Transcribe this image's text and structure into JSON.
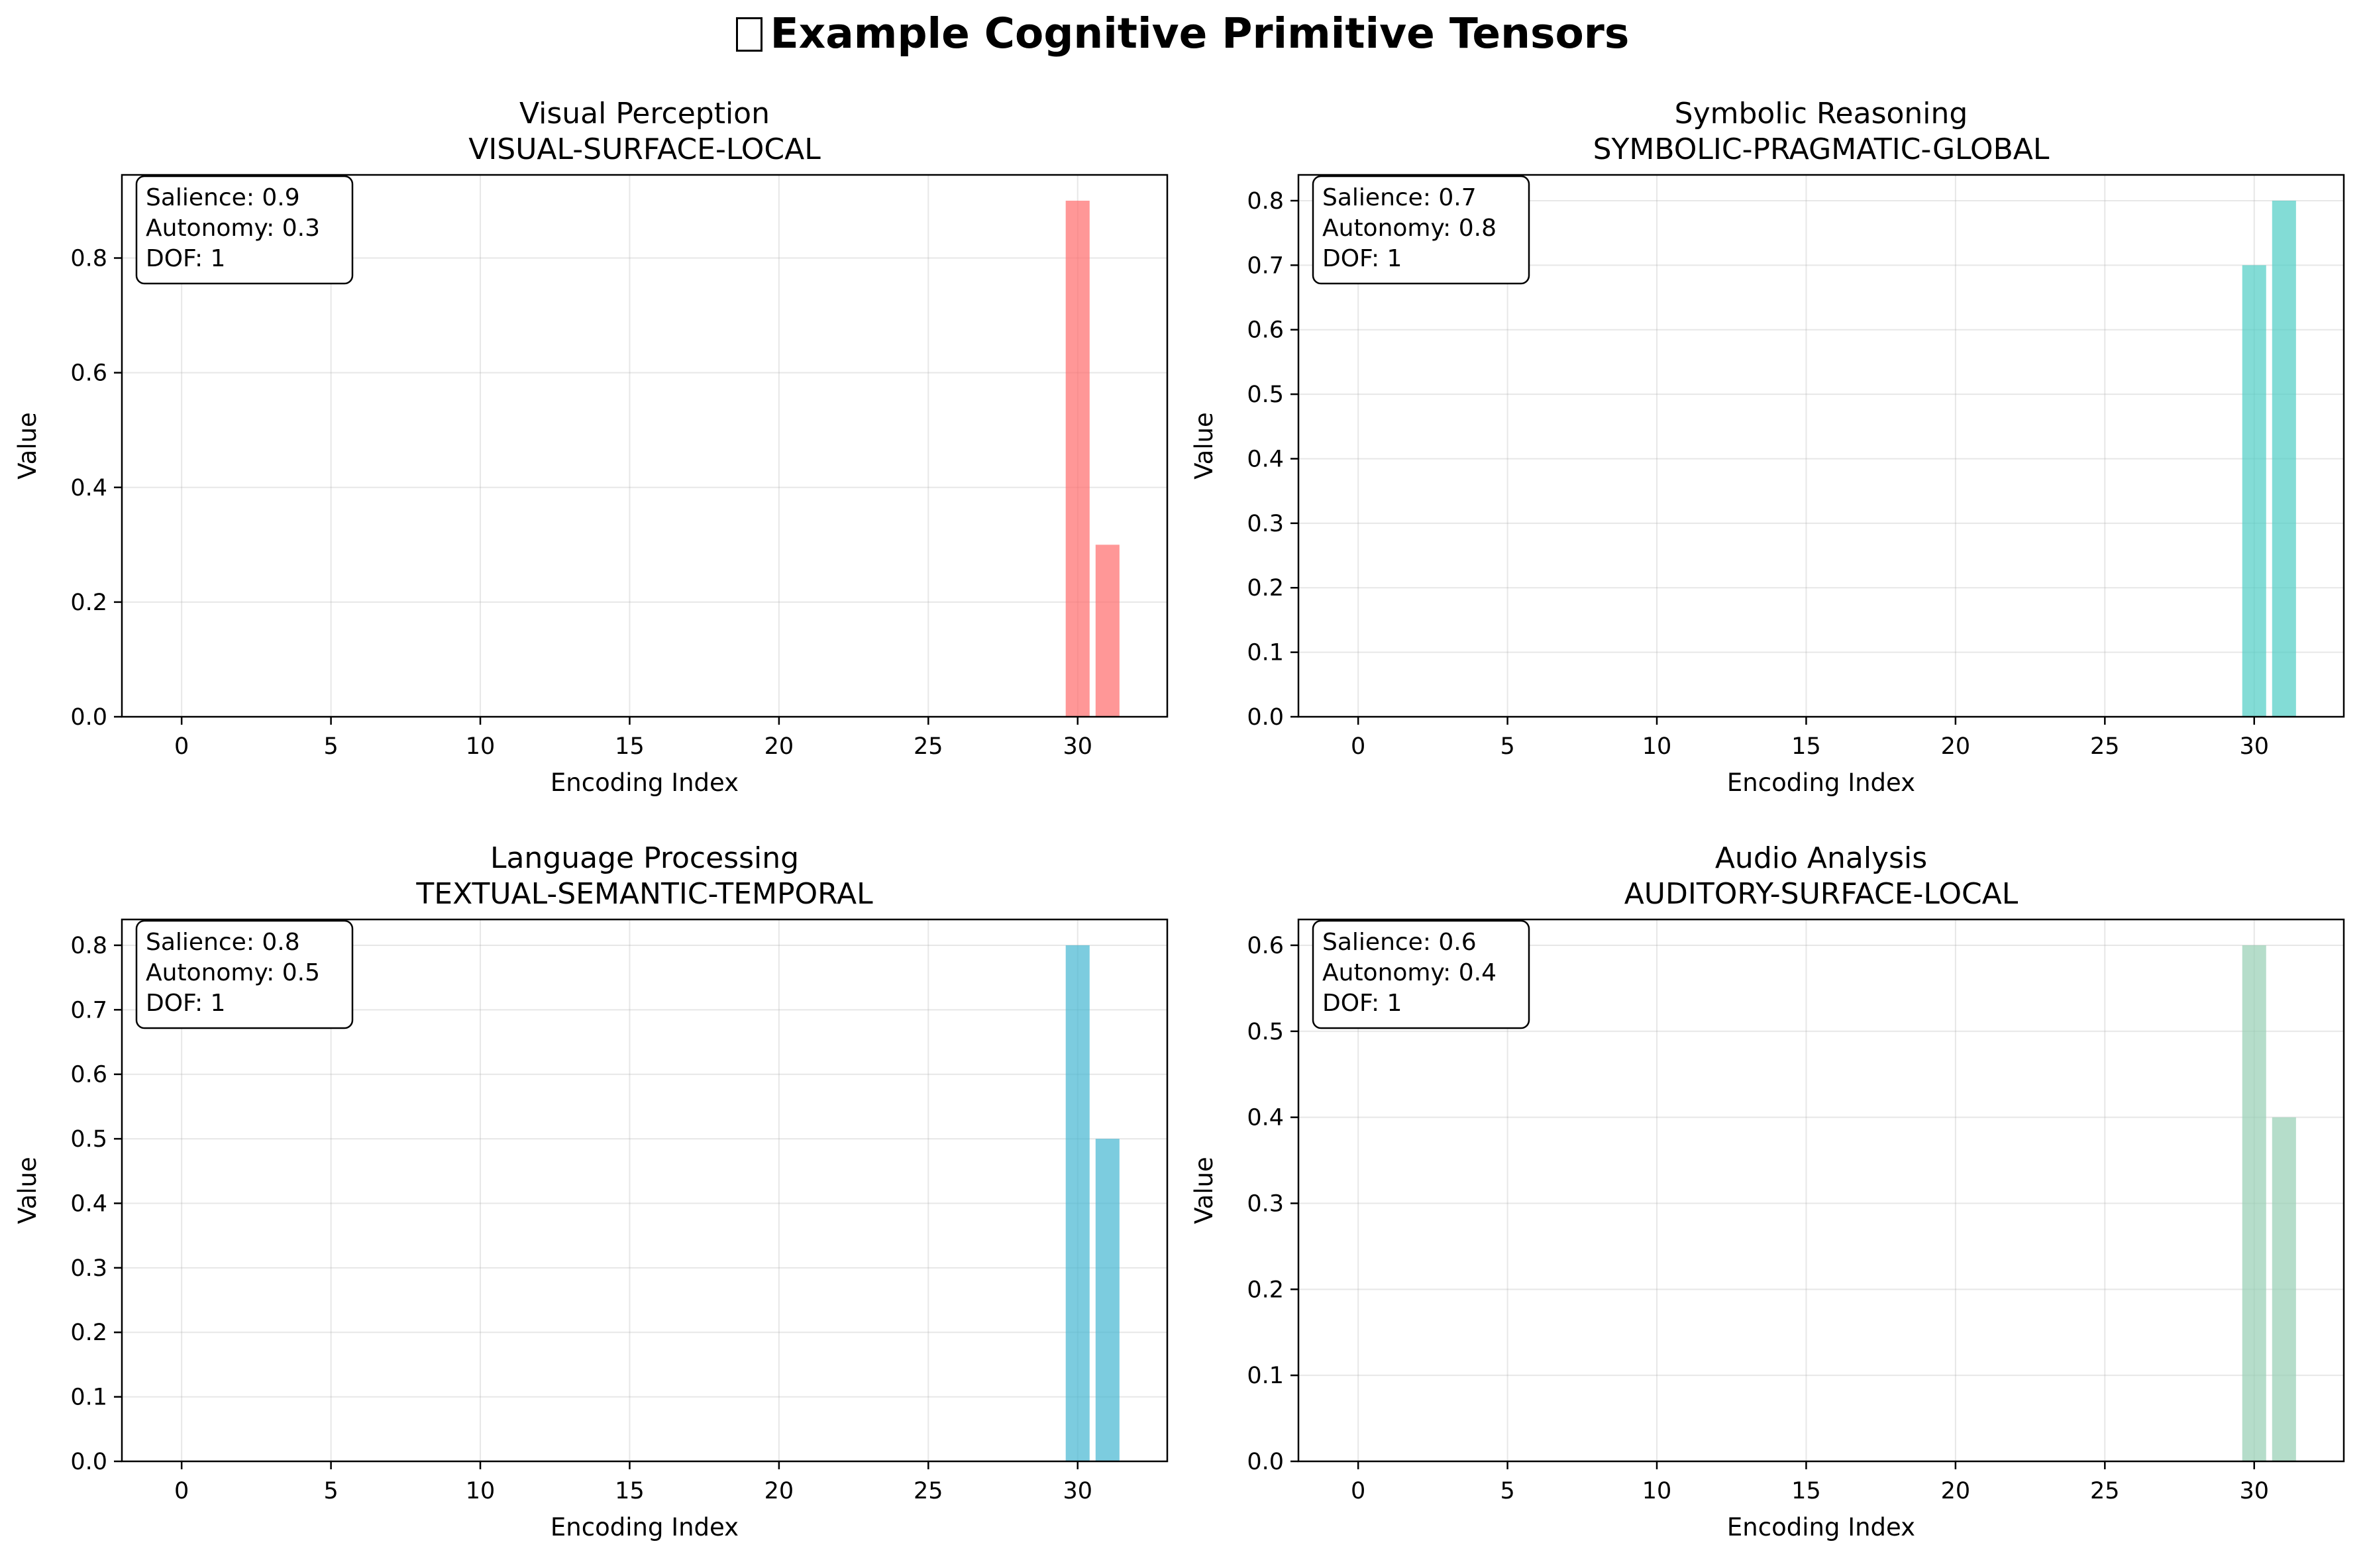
{
  "figure": {
    "title": "Example Cognitive Primitive Tensors",
    "title_icon": "missing-glyph-box"
  },
  "chart_data": [
    {
      "type": "bar",
      "title": "Visual Perception",
      "subtitle": "VISUAL-SURFACE-LOCAL",
      "xlabel": "Encoding Index",
      "ylabel": "Value",
      "x": [
        30,
        31
      ],
      "values": [
        0.9,
        0.3
      ],
      "xlim": [
        -2,
        33
      ],
      "ylim": [
        0,
        0.945
      ],
      "xticks": [
        "0",
        "5",
        "10",
        "15",
        "20",
        "25",
        "30"
      ],
      "yticks": [
        "0.0",
        "0.2",
        "0.4",
        "0.6",
        "0.8"
      ],
      "color": "#FF6B6B",
      "grid": true,
      "annotation": [
        "Salience: 0.9",
        "Autonomy: 0.3",
        "DOF: 1"
      ]
    },
    {
      "type": "bar",
      "title": "Symbolic Reasoning",
      "subtitle": "SYMBOLIC-PRAGMATIC-GLOBAL",
      "xlabel": "Encoding Index",
      "ylabel": "Value",
      "x": [
        30,
        31
      ],
      "values": [
        0.7,
        0.8
      ],
      "xlim": [
        -2,
        33
      ],
      "ylim": [
        0,
        0.84
      ],
      "xticks": [
        "0",
        "5",
        "10",
        "15",
        "20",
        "25",
        "30"
      ],
      "yticks": [
        "0.0",
        "0.1",
        "0.2",
        "0.3",
        "0.4",
        "0.5",
        "0.6",
        "0.7",
        "0.8"
      ],
      "color": "#4ECDC4",
      "grid": true,
      "annotation": [
        "Salience: 0.7",
        "Autonomy: 0.8",
        "DOF: 1"
      ]
    },
    {
      "type": "bar",
      "title": "Language Processing",
      "subtitle": "TEXTUAL-SEMANTIC-TEMPORAL",
      "xlabel": "Encoding Index",
      "ylabel": "Value",
      "x": [
        30,
        31
      ],
      "values": [
        0.8,
        0.5
      ],
      "xlim": [
        -2,
        33
      ],
      "ylim": [
        0,
        0.84
      ],
      "xticks": [
        "0",
        "5",
        "10",
        "15",
        "20",
        "25",
        "30"
      ],
      "yticks": [
        "0.0",
        "0.1",
        "0.2",
        "0.3",
        "0.4",
        "0.5",
        "0.6",
        "0.7",
        "0.8"
      ],
      "color": "#45B7D1",
      "grid": true,
      "annotation": [
        "Salience: 0.8",
        "Autonomy: 0.5",
        "DOF: 1"
      ]
    },
    {
      "type": "bar",
      "title": "Audio Analysis",
      "subtitle": "AUDITORY-SURFACE-LOCAL",
      "xlabel": "Encoding Index",
      "ylabel": "Value",
      "x": [
        30,
        31
      ],
      "values": [
        0.6,
        0.4
      ],
      "xlim": [
        -2,
        33
      ],
      "ylim": [
        0,
        0.63
      ],
      "xticks": [
        "0",
        "5",
        "10",
        "15",
        "20",
        "25",
        "30"
      ],
      "yticks": [
        "0.0",
        "0.1",
        "0.2",
        "0.3",
        "0.4",
        "0.5",
        "0.6"
      ],
      "color": "#96CEB4",
      "grid": true,
      "annotation": [
        "Salience: 0.6",
        "Autonomy: 0.4",
        "DOF: 1"
      ]
    }
  ]
}
